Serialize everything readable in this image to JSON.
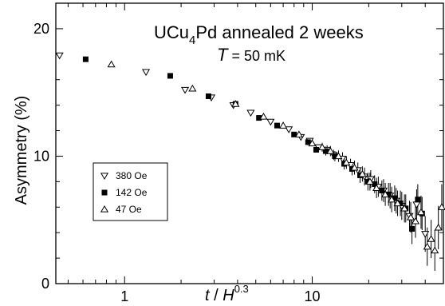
{
  "chart_data": {
    "type": "scatter",
    "title": {
      "main": "UCu",
      "sub": "4",
      "rest": "Pd  annealed 2 weeks"
    },
    "subtitle": {
      "var": "T",
      "rest": " = 50 mK"
    },
    "xlabel": {
      "t": "t",
      "slash": " / ",
      "H": "H",
      "exp": "0.3"
    },
    "ylabel": "Asymmetry  (%)",
    "x_scale": "log",
    "xlim": [
      0.43,
      50
    ],
    "ylim": [
      0,
      22
    ],
    "x_ticks": [
      {
        "value": 1,
        "label": "1"
      },
      {
        "value": 10,
        "label": "10"
      }
    ],
    "y_ticks": [
      {
        "value": 0,
        "label": "0"
      },
      {
        "value": 10,
        "label": "10"
      },
      {
        "value": 20,
        "label": "20"
      }
    ],
    "grid": false,
    "legend_position": "left",
    "series": [
      {
        "name": "380 Oe",
        "marker": "triangle-down",
        "points": [
          [
            0.45,
            17.9
          ],
          [
            1.3,
            16.6
          ],
          [
            2.1,
            15.2
          ],
          [
            2.9,
            14.6
          ],
          [
            3.8,
            14.0
          ],
          [
            4.7,
            13.4
          ],
          [
            6.0,
            12.7
          ],
          [
            7.5,
            12.1
          ],
          [
            8.7,
            11.5
          ],
          [
            9.7,
            11.2
          ],
          [
            10.8,
            10.7
          ],
          [
            12.0,
            10.5
          ],
          [
            13.0,
            10.1
          ],
          [
            14.5,
            9.8
          ],
          [
            16.0,
            9.3
          ],
          [
            17.5,
            8.9
          ],
          [
            19.0,
            8.4
          ],
          [
            20.5,
            8.2
          ],
          [
            22.5,
            7.6
          ],
          [
            24.0,
            7.3
          ],
          [
            26.0,
            6.9
          ],
          [
            28.0,
            6.5
          ],
          [
            30.0,
            6.1
          ],
          [
            33.0,
            5.3
          ],
          [
            36.0,
            6.2
          ],
          [
            40.0,
            3.9
          ]
        ],
        "errors": [
          0.1,
          0.1,
          0.1,
          0.1,
          0.15,
          0.15,
          0.2,
          0.2,
          0.25,
          0.3,
          0.3,
          0.35,
          0.4,
          0.5,
          0.5,
          0.6,
          0.7,
          0.7,
          0.8,
          0.9,
          1.0,
          1.0,
          1.1,
          1.2,
          1.2,
          1.4
        ]
      },
      {
        "name": "142 Oe",
        "marker": "square",
        "points": [
          [
            0.62,
            17.6
          ],
          [
            1.75,
            16.3
          ],
          [
            2.8,
            14.7
          ],
          [
            3.9,
            14.1
          ],
          [
            5.2,
            13.0
          ],
          [
            6.5,
            12.4
          ],
          [
            8.0,
            11.7
          ],
          [
            9.5,
            11.1
          ],
          [
            10.5,
            10.5
          ],
          [
            11.8,
            10.4
          ],
          [
            13.2,
            10.0
          ],
          [
            14.8,
            9.4
          ],
          [
            16.3,
            9.0
          ],
          [
            18.0,
            8.5
          ],
          [
            19.8,
            8.0
          ],
          [
            21.5,
            7.8
          ],
          [
            23.5,
            7.3
          ],
          [
            25.5,
            7.0
          ],
          [
            27.5,
            6.7
          ],
          [
            29.5,
            6.3
          ],
          [
            31.5,
            5.9
          ],
          [
            34.0,
            4.3
          ],
          [
            36.5,
            6.6
          ],
          [
            38.5,
            5.5
          ]
        ],
        "errors": [
          0.1,
          0.1,
          0.1,
          0.15,
          0.15,
          0.2,
          0.2,
          0.25,
          0.3,
          0.35,
          0.4,
          0.45,
          0.5,
          0.6,
          0.7,
          0.7,
          0.8,
          0.9,
          1.0,
          1.0,
          1.1,
          1.2,
          1.2,
          1.3
        ]
      },
      {
        "name": "47 Oe",
        "marker": "triangle-up",
        "points": [
          [
            0.85,
            17.2
          ],
          [
            2.3,
            15.3
          ],
          [
            3.9,
            14.1
          ],
          [
            5.5,
            13.1
          ],
          [
            7.0,
            12.4
          ],
          [
            8.5,
            11.7
          ],
          [
            10.0,
            11.0
          ],
          [
            11.3,
            10.7
          ],
          [
            12.5,
            10.4
          ],
          [
            13.8,
            10.0
          ],
          [
            15.2,
            9.5
          ],
          [
            16.8,
            9.1
          ],
          [
            18.5,
            8.6
          ],
          [
            20.3,
            8.0
          ],
          [
            22.0,
            7.5
          ],
          [
            24.5,
            7.0
          ],
          [
            26.5,
            6.6
          ],
          [
            28.5,
            6.3
          ],
          [
            31.0,
            5.9
          ],
          [
            33.5,
            5.2
          ],
          [
            35.5,
            4.9
          ],
          [
            38.0,
            5.6
          ],
          [
            41.0,
            2.9
          ],
          [
            43.0,
            3.5
          ],
          [
            45.0,
            2.6
          ],
          [
            47.0,
            4.4
          ],
          [
            49.0,
            6.0
          ]
        ],
        "errors": [
          0.1,
          0.1,
          0.15,
          0.15,
          0.2,
          0.25,
          0.3,
          0.35,
          0.4,
          0.45,
          0.5,
          0.55,
          0.6,
          0.7,
          0.8,
          0.9,
          1.0,
          1.0,
          1.1,
          1.2,
          1.3,
          1.3,
          1.5,
          1.5,
          1.6,
          1.7,
          1.8
        ]
      }
    ]
  }
}
